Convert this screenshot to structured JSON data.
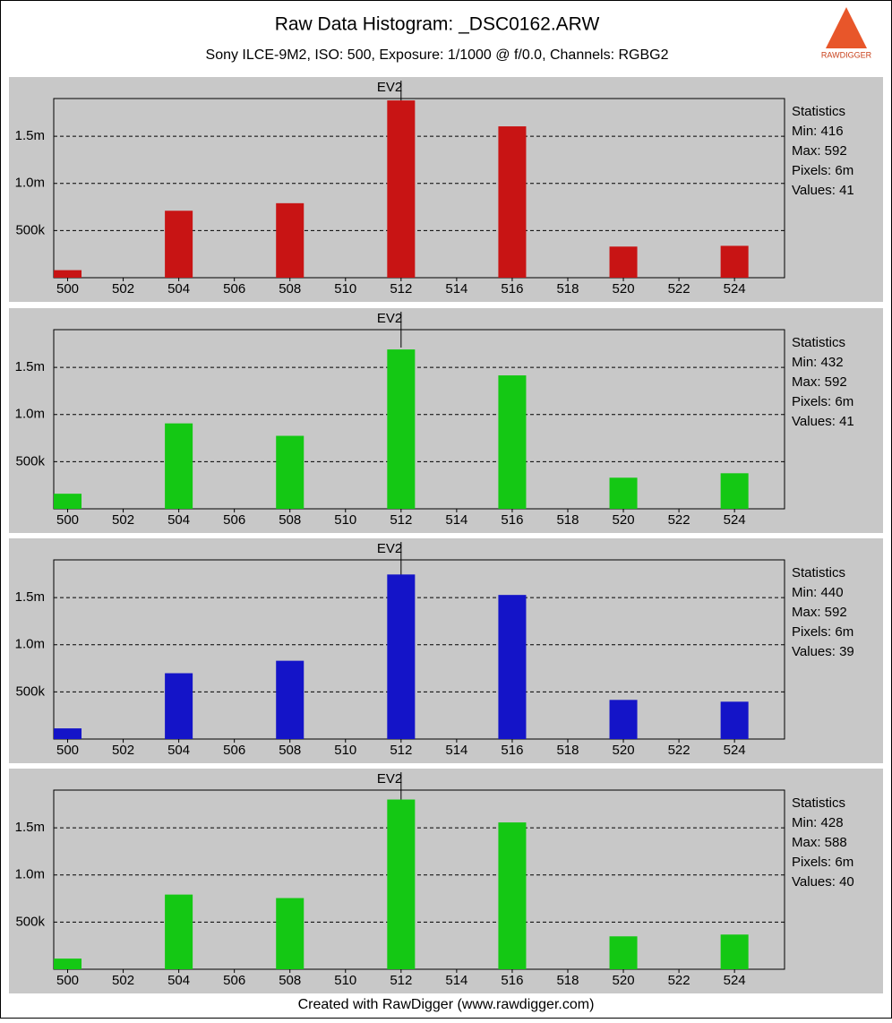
{
  "header": {
    "title": "Raw Data Histogram: _DSC0162.ARW",
    "subtitle": "Sony ILCE-9M2, ISO: 500, Exposure: 1/1000 @ f/0.0, Channels: RGBG2",
    "logo_text": "RAWDIGGER",
    "footer": "Created with RawDigger (www.rawdigger.com)"
  },
  "chart_data": [
    {
      "type": "bar",
      "title": "EV2",
      "ev_marker": 512,
      "color": "#c81414",
      "x": [
        500,
        504,
        508,
        512,
        516,
        520,
        524
      ],
      "values": [
        80000,
        710000,
        790000,
        1880000,
        1605000,
        330000,
        338000
      ],
      "xlim": [
        499.5,
        525.8
      ],
      "ylim": [
        0,
        1900000
      ],
      "xticks": [
        500,
        502,
        504,
        506,
        508,
        510,
        512,
        514,
        516,
        518,
        520,
        522,
        524
      ],
      "yticks": [
        {
          "value": 500000,
          "label": "500k"
        },
        {
          "value": 1000000,
          "label": "1.0m"
        },
        {
          "value": 1500000,
          "label": "1.5m"
        }
      ],
      "grid": true,
      "statistics": {
        "title": "Statistics",
        "lines": [
          "Min: 416",
          "Max: 592",
          "Pixels: 6m",
          "Values: 41"
        ]
      }
    },
    {
      "type": "bar",
      "title": "EV2",
      "ev_marker": 512,
      "color": "#14c814",
      "x": [
        500,
        504,
        508,
        512,
        516,
        520,
        524
      ],
      "values": [
        160000,
        906000,
        774000,
        1690000,
        1415000,
        330000,
        377000
      ],
      "xlim": [
        499.5,
        525.8
      ],
      "ylim": [
        0,
        1900000
      ],
      "xticks": [
        500,
        502,
        504,
        506,
        508,
        510,
        512,
        514,
        516,
        518,
        520,
        522,
        524
      ],
      "yticks": [
        {
          "value": 500000,
          "label": "500k"
        },
        {
          "value": 1000000,
          "label": "1.0m"
        },
        {
          "value": 1500000,
          "label": "1.5m"
        }
      ],
      "grid": true,
      "statistics": {
        "title": "Statistics",
        "lines": [
          "Min: 432",
          "Max: 592",
          "Pixels: 6m",
          "Values: 41"
        ]
      }
    },
    {
      "type": "bar",
      "title": "EV2",
      "ev_marker": 512,
      "color": "#1414c8",
      "x": [
        500,
        504,
        508,
        512,
        516,
        520,
        524
      ],
      "values": [
        113000,
        698000,
        830000,
        1745000,
        1528000,
        415000,
        396000
      ],
      "xlim": [
        499.5,
        525.8
      ],
      "ylim": [
        0,
        1900000
      ],
      "xticks": [
        500,
        502,
        504,
        506,
        508,
        510,
        512,
        514,
        516,
        518,
        520,
        522,
        524
      ],
      "yticks": [
        {
          "value": 500000,
          "label": "500k"
        },
        {
          "value": 1000000,
          "label": "1.0m"
        },
        {
          "value": 1500000,
          "label": "1.5m"
        }
      ],
      "grid": true,
      "statistics": {
        "title": "Statistics",
        "lines": [
          "Min: 440",
          "Max: 592",
          "Pixels: 6m",
          "Values: 39"
        ]
      }
    },
    {
      "type": "bar",
      "title": "EV2",
      "ev_marker": 512,
      "color": "#14c814",
      "x": [
        500,
        504,
        508,
        512,
        516,
        520,
        524
      ],
      "values": [
        113000,
        792000,
        755000,
        1800000,
        1557000,
        349000,
        368000
      ],
      "xlim": [
        499.5,
        525.8
      ],
      "ylim": [
        0,
        1900000
      ],
      "xticks": [
        500,
        502,
        504,
        506,
        508,
        510,
        512,
        514,
        516,
        518,
        520,
        522,
        524
      ],
      "yticks": [
        {
          "value": 500000,
          "label": "500k"
        },
        {
          "value": 1000000,
          "label": "1.0m"
        },
        {
          "value": 1500000,
          "label": "1.5m"
        }
      ],
      "grid": true,
      "statistics": {
        "title": "Statistics",
        "lines": [
          "Min: 428",
          "Max: 588",
          "Pixels: 6m",
          "Values: 40"
        ]
      }
    }
  ]
}
